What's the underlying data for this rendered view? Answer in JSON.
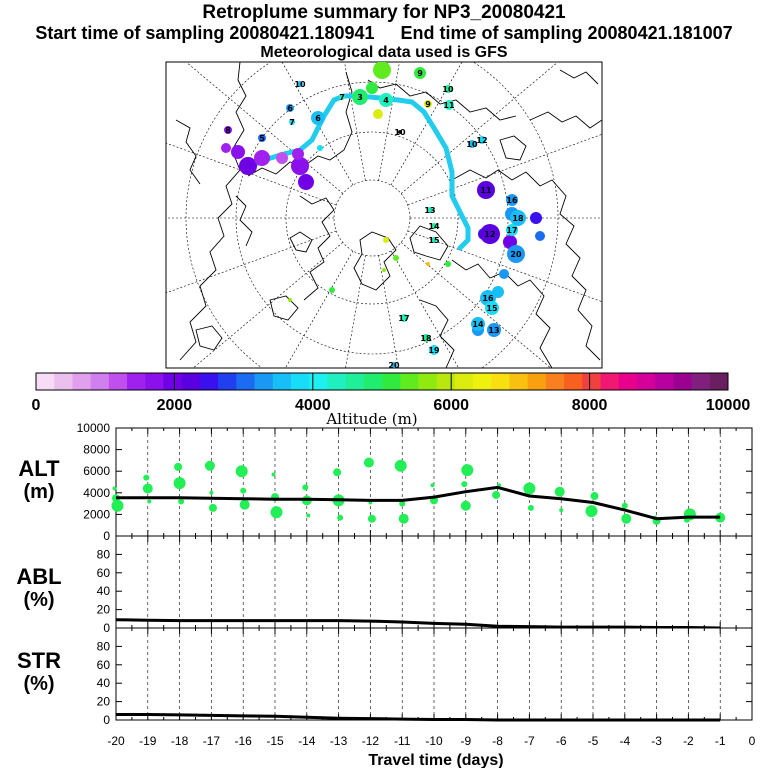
{
  "header": {
    "title": "Retroplume summary for NP3_20080421",
    "start_label": "Start time of sampling 20080421.180941",
    "end_label": "End time of sampling 20080421.181007",
    "met_label": "Meteorological data used is GFS"
  },
  "map": {
    "marker_labels": [
      "10",
      "9",
      "6",
      "5",
      "8",
      "7",
      "6",
      "3",
      "4",
      "10",
      "11",
      "10",
      "9",
      "7",
      "12",
      "10",
      "11",
      "16",
      "18",
      "17",
      "12",
      "13",
      "14",
      "15",
      "20",
      "16",
      "15",
      "14",
      "13",
      "17",
      "19",
      "18",
      "20"
    ],
    "track_color": "#22ccee",
    "background": "#ffffff"
  },
  "colorbar": {
    "title": "Altitude (m)",
    "tick_labels": [
      "0",
      "2000",
      "4000",
      "6000",
      "8000",
      "10000"
    ],
    "colors": [
      "#f6dcf6",
      "#ecc0ee",
      "#e0a0ee",
      "#d080ee",
      "#c050ee",
      "#a020ee",
      "#8a10ec",
      "#7000e6",
      "#5a00e0",
      "#3a10ee",
      "#2040f0",
      "#1c6cf2",
      "#1a98f4",
      "#18bef6",
      "#18dcf8",
      "#1ef0f0",
      "#20f0c0",
      "#20ee98",
      "#20ec70",
      "#30ea40",
      "#60ea20",
      "#90ea10",
      "#b8e810",
      "#dcec10",
      "#f0f010",
      "#f8e010",
      "#f8c010",
      "#f8a010",
      "#f88020",
      "#f86020",
      "#f04040",
      "#f01870",
      "#e8008c",
      "#d4009a",
      "#b800a0",
      "#9c0090",
      "#80207c",
      "#6a2060"
    ]
  },
  "chart_data": [
    {
      "type": "scatter",
      "name": "ALT",
      "ylabel": "ALT (m)",
      "ylim": [
        0,
        10000
      ],
      "yticks": [
        0,
        2000,
        4000,
        6000,
        8000,
        10000
      ],
      "xlim": [
        -20,
        0
      ],
      "line": {
        "x": [
          -20,
          -19,
          -18,
          -17,
          -16,
          -15,
          -14,
          -13,
          -12,
          -11,
          -10,
          -9,
          -8,
          -7,
          -6,
          -5,
          -4,
          -3,
          -2,
          -1
        ],
        "y": [
          3550,
          3550,
          3550,
          3500,
          3450,
          3400,
          3400,
          3350,
          3300,
          3300,
          3600,
          4100,
          4500,
          3700,
          3450,
          3100,
          2400,
          1600,
          1750,
          1750
        ]
      },
      "points": {
        "color": "#22ee55",
        "x": [
          -20,
          -20,
          -20,
          -19,
          -19,
          -19,
          -18,
          -18,
          -18,
          -17,
          -17,
          -17,
          -16,
          -16,
          -16,
          -15,
          -15,
          -15,
          -14,
          -14,
          -14,
          -13,
          -13,
          -13,
          -12,
          -12,
          -12,
          -11,
          -11,
          -11,
          -10,
          -10,
          -9,
          -9,
          -9,
          -8,
          -8,
          -7,
          -7,
          -6,
          -6,
          -5,
          -5,
          -4,
          -4,
          -3,
          -3,
          -2,
          -2,
          -1
        ],
        "y": [
          4400,
          3500,
          2800,
          5400,
          4400,
          3200,
          6400,
          4900,
          3200,
          6500,
          4000,
          2600,
          6000,
          4200,
          2900,
          5700,
          3600,
          2200,
          4500,
          3300,
          1900,
          5900,
          3300,
          1700,
          6800,
          3100,
          1600,
          6500,
          3000,
          1600,
          4700,
          3300,
          6100,
          4800,
          2800,
          4700,
          3800,
          4400,
          2600,
          4100,
          2400,
          3700,
          2300,
          2800,
          1600,
          1700,
          1400,
          2000,
          1500,
          1700
        ]
      }
    },
    {
      "type": "line",
      "name": "ABL",
      "ylabel": "ABL (%)",
      "ylim": [
        0,
        100
      ],
      "yticks": [
        0,
        20,
        40,
        60,
        80
      ],
      "xlim": [
        -20,
        0
      ],
      "x": [
        -20,
        -19,
        -18,
        -17,
        -16,
        -15,
        -14,
        -13,
        -12,
        -11,
        -10,
        -9,
        -8,
        -7,
        -6,
        -5,
        -4,
        -3,
        -2,
        -1
      ],
      "y": [
        9,
        8.5,
        8,
        8,
        8,
        8,
        8,
        8,
        7.5,
        6.5,
        5,
        4,
        2,
        1.5,
        1,
        1,
        1,
        0.5,
        0.5,
        0
      ]
    },
    {
      "type": "line",
      "name": "STR",
      "ylabel": "STR (%)",
      "ylim": [
        0,
        100
      ],
      "yticks": [
        0,
        20,
        40,
        60,
        80
      ],
      "xlim": [
        -20,
        0
      ],
      "xlabel": "Travel time (days)",
      "xticks": [
        "-20",
        "-19",
        "-18",
        "-17",
        "-16",
        "-15",
        "-14",
        "-13",
        "-12",
        "-11",
        "-10",
        "-9",
        "-8",
        "-7",
        "-6",
        "-5",
        "-4",
        "-3",
        "-2",
        "-1",
        "0"
      ],
      "x": [
        -20,
        -19,
        -18,
        -17,
        -16,
        -15,
        -14,
        -13,
        -12,
        -11,
        -10,
        -9,
        -8,
        -7,
        -6,
        -5,
        -4,
        -3,
        -2,
        -1
      ],
      "y": [
        6,
        6,
        5.5,
        5,
        4.5,
        4,
        3,
        2,
        1.5,
        1,
        0.5,
        0.5,
        0,
        0,
        0,
        0,
        0,
        0,
        0,
        0
      ]
    }
  ]
}
